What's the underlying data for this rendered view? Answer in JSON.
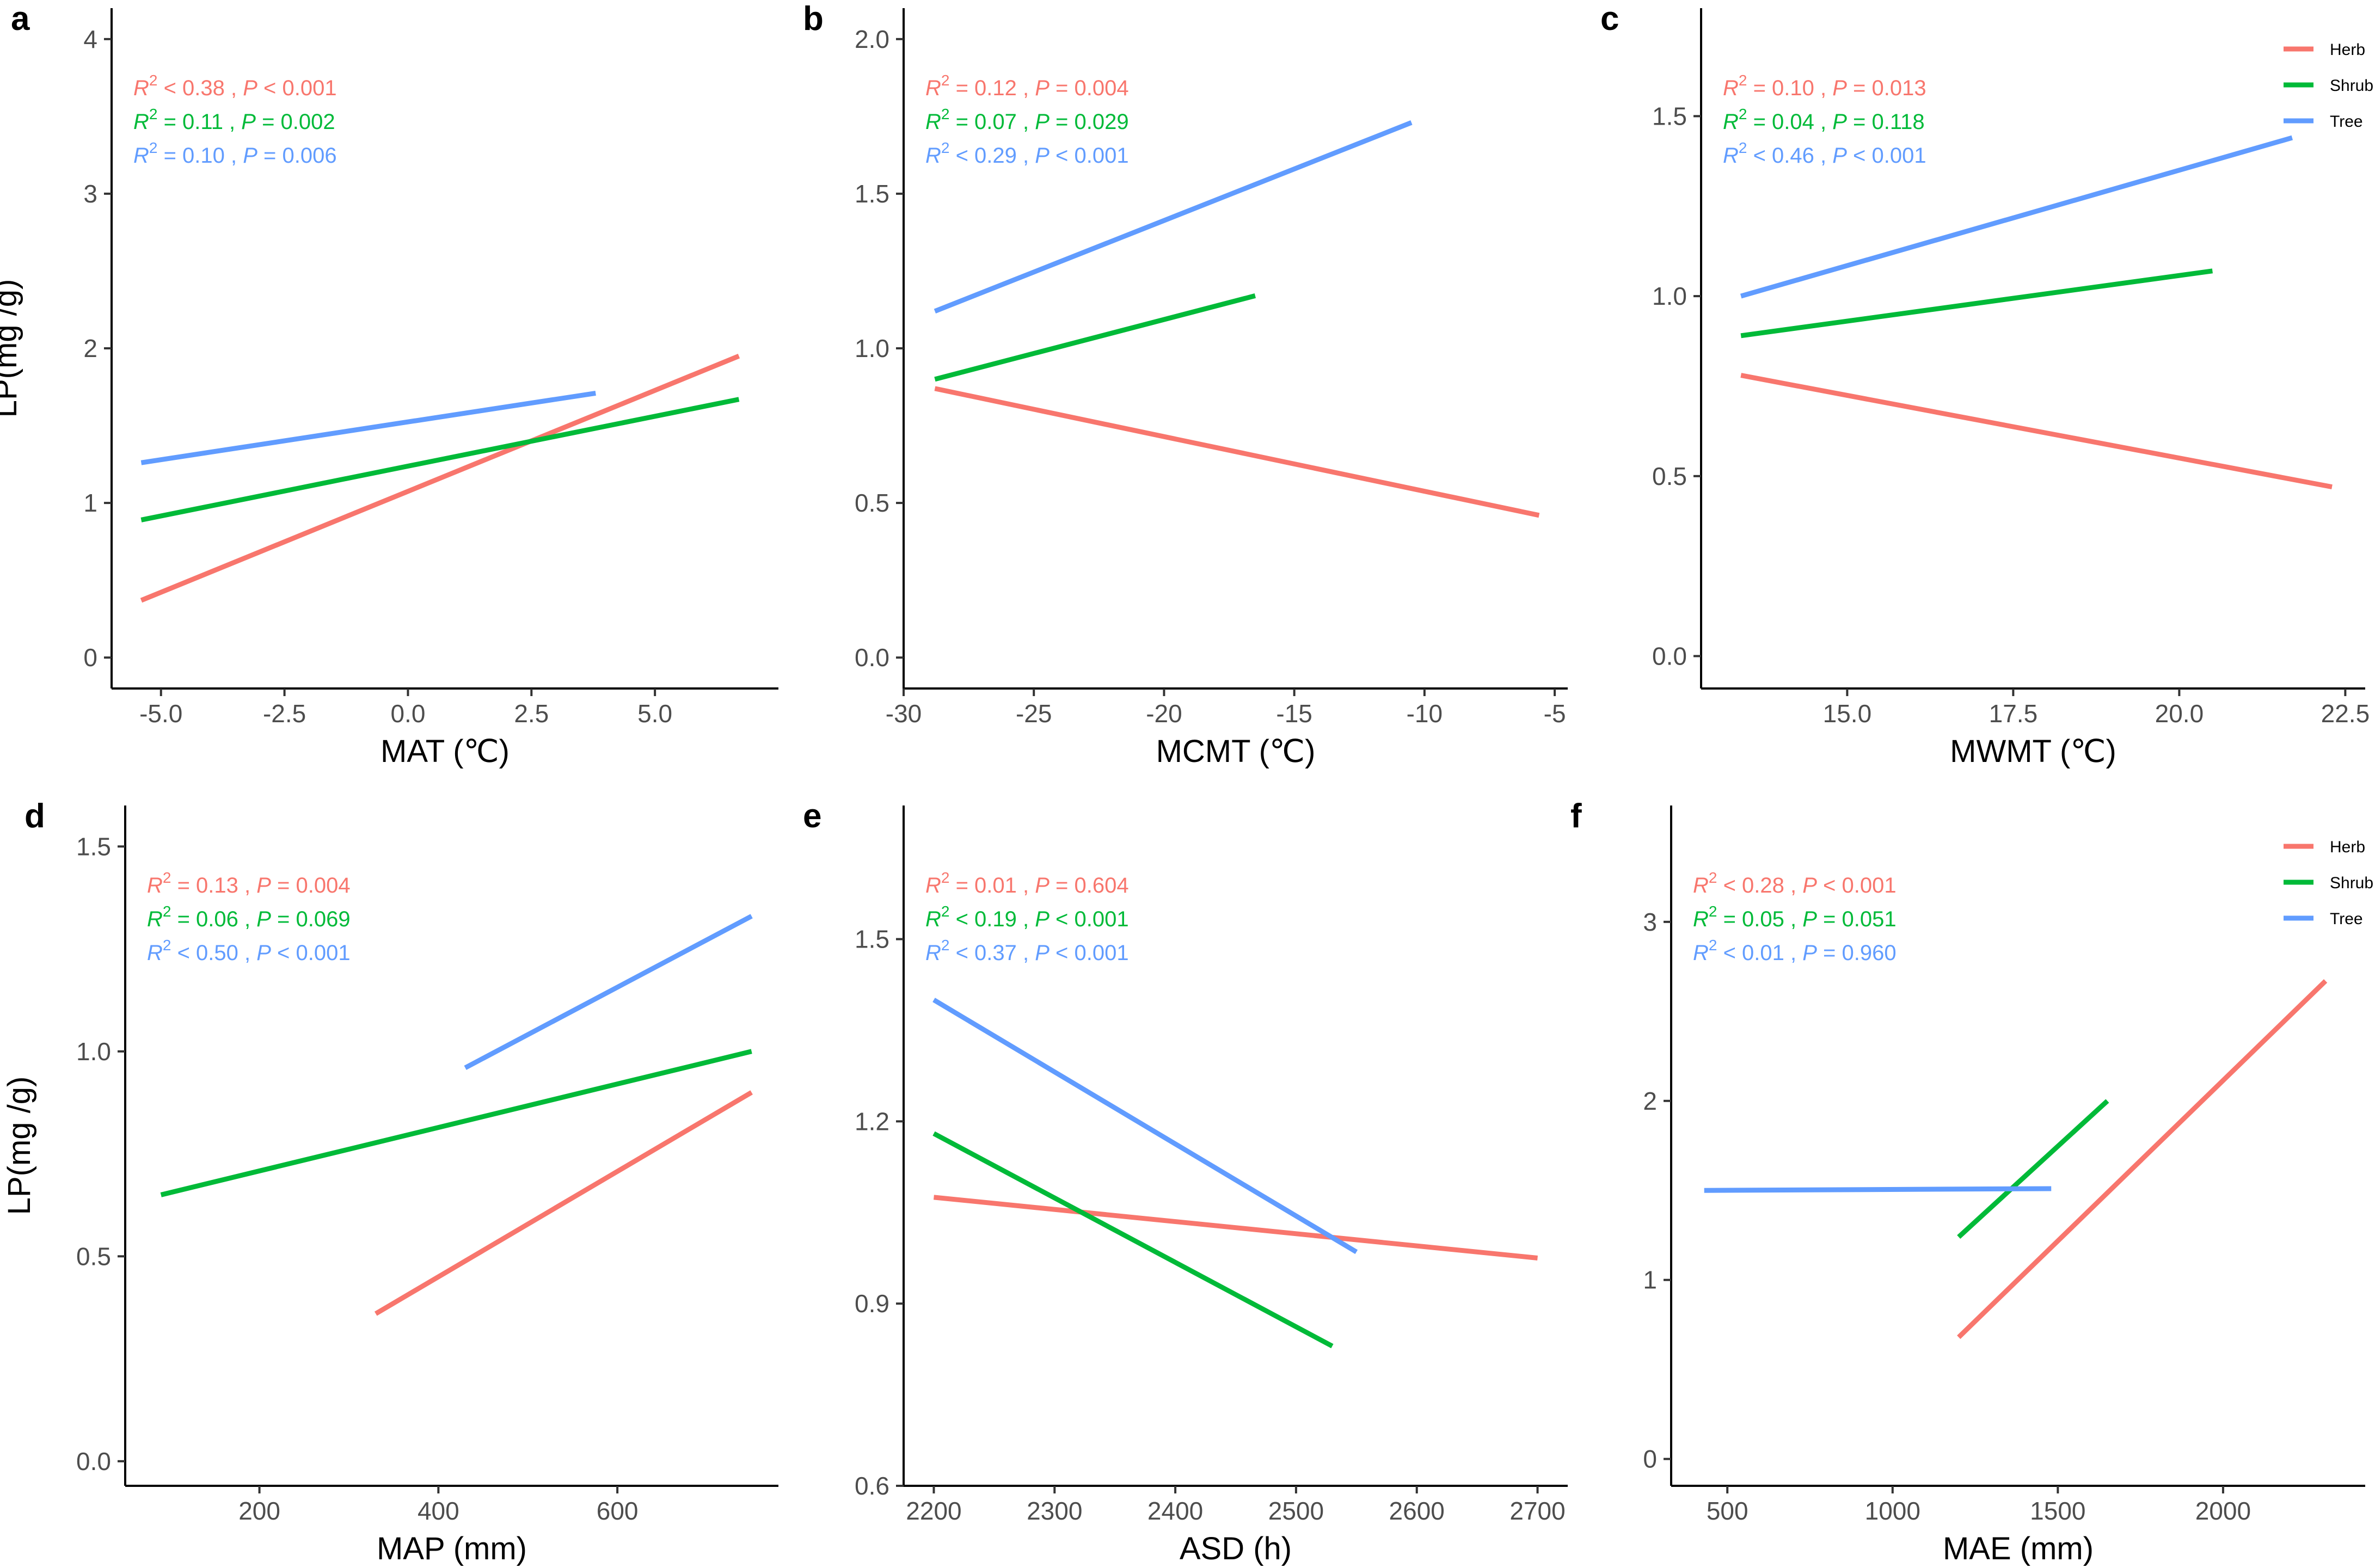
{
  "colors": {
    "Herb": "#F8766D",
    "Shrub": "#00BA38",
    "Tree": "#619CFF"
  },
  "legend": {
    "entries": [
      "Herb",
      "Shrub",
      "Tree"
    ],
    "panels": [
      "c",
      "f"
    ]
  },
  "chart_data": [
    {
      "type": "line",
      "panel": "a",
      "xlabel": "MAT (℃)",
      "ylabel": "LP(mg /g)",
      "xlim": [
        -6.0,
        7.5
      ],
      "ylim": [
        -0.2,
        4.2
      ],
      "xticks": [
        -5.0,
        -2.5,
        0.0,
        2.5,
        5.0
      ],
      "xtick_labels": [
        "-5.0",
        "-2.5",
        "0.0",
        "2.5",
        "5.0"
      ],
      "yticks": [
        0,
        1,
        2,
        3,
        4
      ],
      "ytick_labels": [
        "0",
        "1",
        "2",
        "3",
        "4"
      ],
      "series": [
        {
          "name": "Herb",
          "x": [
            -5.4,
            6.7
          ],
          "y": [
            0.37,
            1.95
          ]
        },
        {
          "name": "Shrub",
          "x": [
            -5.4,
            6.7
          ],
          "y": [
            0.89,
            1.67
          ]
        },
        {
          "name": "Tree",
          "x": [
            -5.4,
            3.8
          ],
          "y": [
            1.26,
            1.71
          ]
        }
      ],
      "stats": [
        {
          "name": "Herb",
          "r2": "0.38",
          "op": "<",
          "p": "0.001"
        },
        {
          "name": "Shrub",
          "r2": "0.11",
          "op": "=",
          "p": "0.002"
        },
        {
          "name": "Tree",
          "r2": "0.10",
          "op": "=",
          "p": "0.006"
        }
      ]
    },
    {
      "type": "line",
      "panel": "b",
      "xlabel": "MCMT (℃)",
      "ylabel": "",
      "xlim": [
        -30.0,
        -4.5
      ],
      "ylim": [
        -0.1,
        2.1
      ],
      "xticks": [
        -30,
        -25,
        -20,
        -15,
        -10,
        -5
      ],
      "xtick_labels": [
        "-30",
        "-25",
        "-20",
        "-15",
        "-10",
        "-5"
      ],
      "yticks": [
        0.0,
        0.5,
        1.0,
        1.5,
        2.0
      ],
      "ytick_labels": [
        "0.0",
        "0.5",
        "1.0",
        "1.5",
        "2.0"
      ],
      "series": [
        {
          "name": "Herb",
          "x": [
            -28.8,
            -5.6
          ],
          "y": [
            0.87,
            0.46
          ]
        },
        {
          "name": "Shrub",
          "x": [
            -28.8,
            -16.5
          ],
          "y": [
            0.9,
            1.17
          ]
        },
        {
          "name": "Tree",
          "x": [
            -28.8,
            -10.5
          ],
          "y": [
            1.12,
            1.73
          ]
        }
      ],
      "stats": [
        {
          "name": "Herb",
          "r2": "0.12",
          "op": "=",
          "p": "0.004"
        },
        {
          "name": "Shrub",
          "r2": "0.07",
          "op": "=",
          "p": "0.029"
        },
        {
          "name": "Tree",
          "r2": "0.29",
          "op": "<",
          "p": "0.001"
        }
      ]
    },
    {
      "type": "line",
      "panel": "c",
      "xlabel": "MWMT (℃)",
      "ylabel": "",
      "xlim": [
        12.8,
        22.8
      ],
      "ylim": [
        -0.09,
        1.8
      ],
      "xticks": [
        15.0,
        17.5,
        20.0,
        22.5
      ],
      "xtick_labels": [
        "15.0",
        "17.5",
        "20.0",
        "22.5"
      ],
      "yticks": [
        0.0,
        0.5,
        1.0,
        1.5
      ],
      "ytick_labels": [
        "0.0",
        "0.5",
        "1.0",
        "1.5"
      ],
      "series": [
        {
          "name": "Herb",
          "x": [
            13.4,
            22.3
          ],
          "y": [
            0.78,
            0.47
          ]
        },
        {
          "name": "Shrub",
          "x": [
            13.4,
            20.5
          ],
          "y": [
            0.89,
            1.07
          ]
        },
        {
          "name": "Tree",
          "x": [
            13.4,
            21.7
          ],
          "y": [
            1.0,
            1.44
          ]
        }
      ],
      "stats": [
        {
          "name": "Herb",
          "r2": "0.10",
          "op": "=",
          "p": "0.013"
        },
        {
          "name": "Shrub",
          "r2": "0.04",
          "op": "=",
          "p": "0.118"
        },
        {
          "name": "Tree",
          "r2": "0.46",
          "op": "<",
          "p": "0.001"
        }
      ]
    },
    {
      "type": "line",
      "panel": "d",
      "xlabel": "MAP (mm)",
      "ylabel": "LP(mg /g)",
      "xlim": [
        50,
        780
      ],
      "ylim": [
        -0.06,
        1.6
      ],
      "xticks": [
        200,
        400,
        600
      ],
      "xtick_labels": [
        "200",
        "400",
        "600"
      ],
      "yticks": [
        0.0,
        0.5,
        1.0,
        1.5
      ],
      "ytick_labels": [
        "0.0",
        "0.5",
        "1.0",
        "1.5"
      ],
      "series": [
        {
          "name": "Herb",
          "x": [
            330,
            750
          ],
          "y": [
            0.36,
            0.9
          ]
        },
        {
          "name": "Shrub",
          "x": [
            90,
            750
          ],
          "y": [
            0.65,
            1.0
          ]
        },
        {
          "name": "Tree",
          "x": [
            430,
            750
          ],
          "y": [
            0.96,
            1.33
          ]
        }
      ],
      "stats": [
        {
          "name": "Herb",
          "r2": "0.13",
          "op": "=",
          "p": "0.004"
        },
        {
          "name": "Shrub",
          "r2": "0.06",
          "op": "=",
          "p": "0.069"
        },
        {
          "name": "Tree",
          "r2": "0.50",
          "op": "<",
          "p": "0.001"
        }
      ]
    },
    {
      "type": "line",
      "panel": "e",
      "xlabel": "ASD (h)",
      "ylabel": "",
      "xlim": [
        2175,
        2725
      ],
      "ylim": [
        0.6,
        1.72
      ],
      "xticks": [
        2200,
        2300,
        2400,
        2500,
        2600,
        2700
      ],
      "xtick_labels": [
        "2200",
        "2300",
        "2400",
        "2500",
        "2600",
        "2700"
      ],
      "yticks": [
        0.6,
        0.9,
        1.2,
        1.5
      ],
      "ytick_labels": [
        "0.6",
        "0.9",
        "1.2",
        "1.5"
      ],
      "series": [
        {
          "name": "Herb",
          "x": [
            2200,
            2700
          ],
          "y": [
            1.075,
            0.975
          ]
        },
        {
          "name": "Shrub",
          "x": [
            2200,
            2530
          ],
          "y": [
            1.18,
            0.83
          ]
        },
        {
          "name": "Tree",
          "x": [
            2200,
            2550
          ],
          "y": [
            1.4,
            0.985
          ]
        }
      ],
      "stats": [
        {
          "name": "Herb",
          "r2": "0.01",
          "op": "=",
          "p": "0.604"
        },
        {
          "name": "Shrub",
          "r2": "0.19",
          "op": "<",
          "p": "0.001"
        },
        {
          "name": "Tree",
          "r2": "0.37",
          "op": "<",
          "p": "0.001"
        }
      ]
    },
    {
      "type": "line",
      "panel": "f",
      "xlabel": "MAE (mm)",
      "ylabel": "",
      "xlim": [
        330,
        2430
      ],
      "ylim": [
        -0.15,
        3.65
      ],
      "xticks": [
        500,
        1000,
        1500,
        2000
      ],
      "xtick_labels": [
        "500",
        "1000",
        "1500",
        "2000"
      ],
      "yticks": [
        0,
        1,
        2,
        3
      ],
      "ytick_labels": [
        "0",
        "1",
        "2",
        "3"
      ],
      "series": [
        {
          "name": "Herb",
          "x": [
            1200,
            2310
          ],
          "y": [
            0.68,
            2.67
          ]
        },
        {
          "name": "Shrub",
          "x": [
            1200,
            1650
          ],
          "y": [
            1.24,
            2.0
          ]
        },
        {
          "name": "Tree",
          "x": [
            430,
            1480
          ],
          "y": [
            1.5,
            1.51
          ]
        }
      ],
      "stats": [
        {
          "name": "Herb",
          "r2": "0.28",
          "op": "<",
          "p": "0.001"
        },
        {
          "name": "Shrub",
          "r2": "0.05",
          "op": "=",
          "p": "0.051"
        },
        {
          "name": "Tree",
          "r2": "0.01",
          "op": "<",
          "p": "0.960"
        }
      ]
    }
  ]
}
